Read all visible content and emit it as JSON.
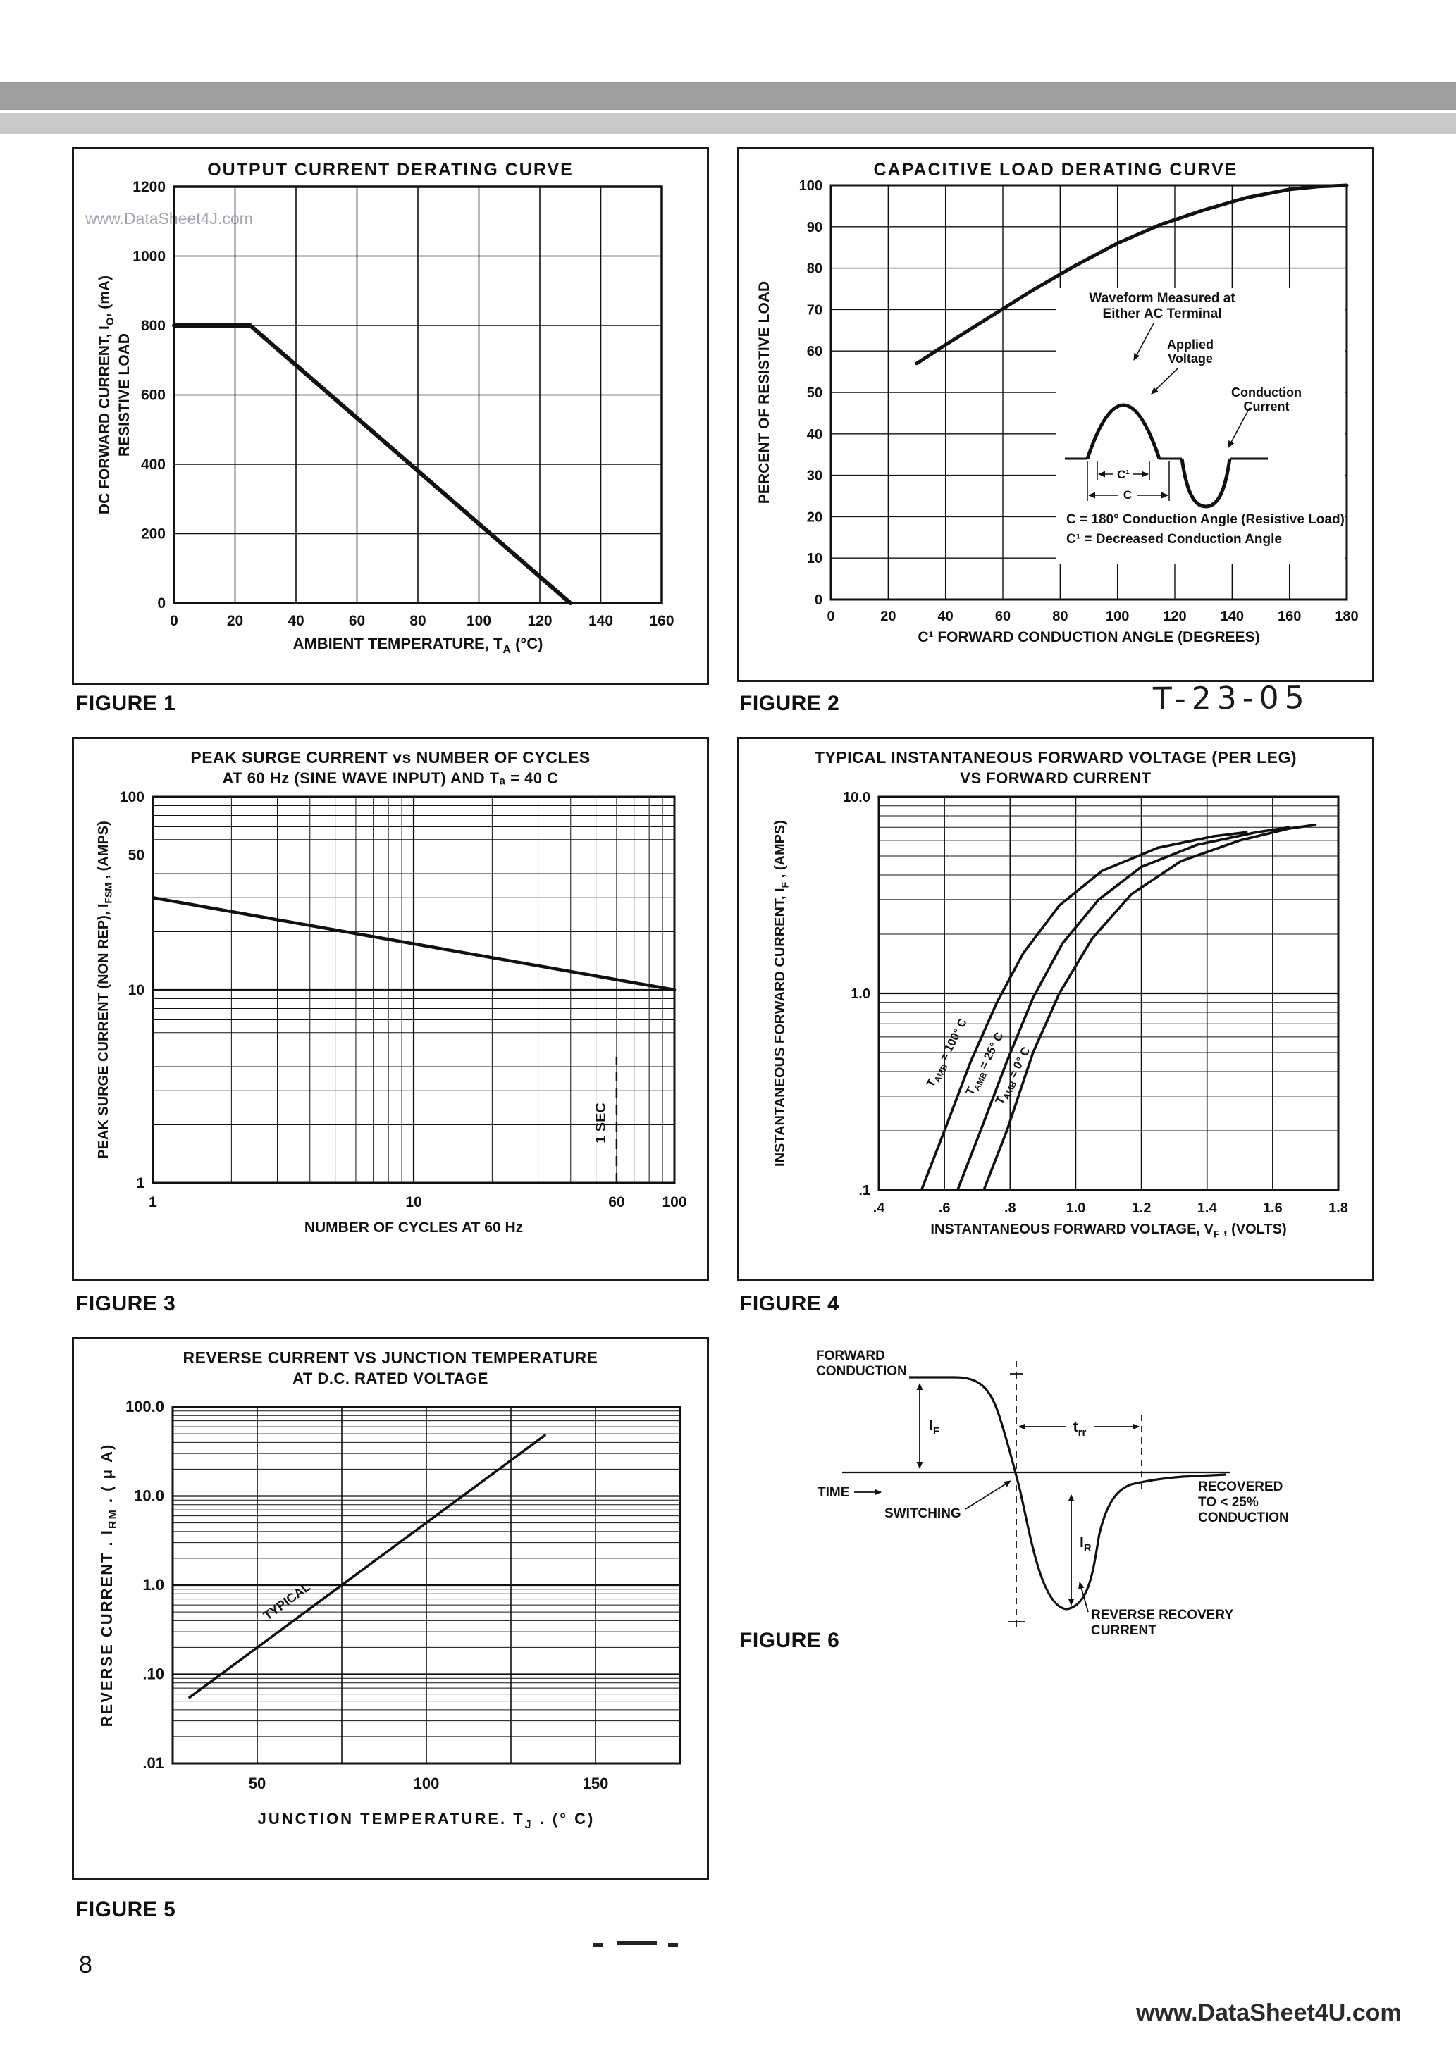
{
  "page": {
    "page_number": "8",
    "footer_watermark": "www.DataSheet4U.com",
    "figure1_watermark": "www.DataSheet4J.com",
    "stamp": "T-23-05"
  },
  "colors": {
    "header_bar_dark": "#9f9f9f",
    "header_bar_light": "#c9c9c9"
  },
  "figures": {
    "fig1": "FIGURE 1",
    "fig2": "FIGURE 2",
    "fig3": "FIGURE 3",
    "fig4": "FIGURE 4",
    "fig5": "FIGURE 5",
    "fig6": "FIGURE 6"
  },
  "chart_data": [
    {
      "id": "fig1",
      "type": "line",
      "title": "OUTPUT CURRENT DERATING CURVE",
      "xlabel": "AMBIENT TEMPERATURE, T_{A} (°C)",
      "ylabel_lines": [
        "DC FORWARD CURRENT, I_{O}, (mA)",
        "RESISTIVE LOAD"
      ],
      "xlim": [
        0,
        160
      ],
      "ylim": [
        0,
        1200
      ],
      "xticks": [
        0,
        20,
        40,
        60,
        80,
        100,
        120,
        140,
        160
      ],
      "yticks": [
        0,
        200,
        400,
        600,
        800,
        1000,
        1200
      ],
      "grid": true,
      "series": [
        {
          "name": "output-current-derating",
          "points": [
            [
              0,
              800
            ],
            [
              25,
              800
            ],
            [
              130,
              0
            ]
          ]
        }
      ]
    },
    {
      "id": "fig2",
      "type": "line",
      "title": "CAPACITIVE LOAD DERATING CURVE",
      "xlabel": "C¹ FORWARD CONDUCTION ANGLE (DEGREES)",
      "ylabel": "PERCENT OF RESISTIVE LOAD",
      "xlim": [
        0,
        180
      ],
      "ylim": [
        0,
        100
      ],
      "xticks": [
        0,
        20,
        40,
        60,
        80,
        100,
        120,
        140,
        160,
        180
      ],
      "yticks": [
        0,
        10,
        20,
        30,
        40,
        50,
        60,
        70,
        80,
        90,
        100
      ],
      "grid": true,
      "series": [
        {
          "name": "capacitive-load-derating",
          "points": [
            [
              30,
              57
            ],
            [
              40,
              61.5
            ],
            [
              55,
              68
            ],
            [
              70,
              74.5
            ],
            [
              85,
              80.5
            ],
            [
              100,
              86
            ],
            [
              115,
              90.5
            ],
            [
              130,
              94
            ],
            [
              145,
              97
            ],
            [
              160,
              99
            ],
            [
              170,
              99.7
            ],
            [
              180,
              100
            ]
          ]
        }
      ],
      "annotations": {
        "measured_lines": [
          "Waveform Measured at",
          "Either AC Terminal"
        ],
        "applied_lines": [
          "Applied",
          "Voltage"
        ],
        "conduction_lines": [
          "Conduction",
          "Current"
        ],
        "c1_label": "C¹",
        "c_label": "C",
        "notes": [
          "C  = 180° Conduction Angle (Resistive Load)",
          "C¹ = Decreased Conduction Angle"
        ]
      }
    },
    {
      "id": "fig3",
      "type": "loglog",
      "title_lines": [
        "PEAK SURGE CURRENT vs NUMBER OF CYCLES",
        "AT 60 Hz (SINE WAVE INPUT) AND Tₐ = 40 C"
      ],
      "xlabel": "NUMBER OF CYCLES AT 60 Hz",
      "ylabel": "PEAK SURGE CURRENT (NON REP), I_{FSM} , (AMPS)",
      "xlim": [
        1,
        100
      ],
      "ylim": [
        1,
        100
      ],
      "xtick_labels": [
        {
          "v": 1,
          "label": "1"
        },
        {
          "v": 10,
          "label": "10"
        },
        {
          "v": 60,
          "label": "60"
        },
        {
          "v": 100,
          "label": "100"
        }
      ],
      "ytick_labels": [
        {
          "v": 100,
          "label": "100"
        },
        {
          "v": 50,
          "label": "50"
        },
        {
          "v": 10,
          "label": "10"
        },
        {
          "v": 1,
          "label": "1"
        }
      ],
      "series": [
        {
          "name": "peak-surge-current",
          "points": [
            [
              1,
              30
            ],
            [
              100,
              10
            ]
          ]
        }
      ],
      "vline": {
        "x": 60,
        "label": "1 SEC",
        "dashed": true
      }
    },
    {
      "id": "fig4",
      "type": "semilog",
      "title_lines": [
        "TYPICAL INSTANTANEOUS FORWARD VOLTAGE (PER LEG)",
        "VS FORWARD CURRENT"
      ],
      "xlabel": "INSTANTANEOUS FORWARD VOLTAGE, V_{F} , (VOLTS)",
      "ylabel": "INSTANTANEOUS FORWARD CURRENT, I_{F} , (AMPS)",
      "xlim": [
        0.4,
        1.8
      ],
      "ylim": [
        0.1,
        10
      ],
      "xtick_labels": [
        {
          "v": 0.4,
          "label": ".4"
        },
        {
          "v": 0.6,
          "label": ".6"
        },
        {
          "v": 0.8,
          "label": ".8"
        },
        {
          "v": 1.0,
          "label": "1.0"
        },
        {
          "v": 1.2,
          "label": "1.2"
        },
        {
          "v": 1.4,
          "label": "1.4"
        },
        {
          "v": 1.6,
          "label": "1.6"
        },
        {
          "v": 1.8,
          "label": "1.8"
        }
      ],
      "ytick_labels": [
        {
          "v": 10,
          "label": "10.0"
        },
        {
          "v": 1,
          "label": "1.0"
        },
        {
          "v": 0.1,
          "label": ".1"
        }
      ],
      "series": [
        {
          "name": "tamb-100c",
          "label": "T_{AMB} = 100° C",
          "points": [
            [
              0.53,
              0.1
            ],
            [
              0.6,
              0.2
            ],
            [
              0.68,
              0.45
            ],
            [
              0.76,
              0.9
            ],
            [
              0.84,
              1.6
            ],
            [
              0.95,
              2.8
            ],
            [
              1.08,
              4.2
            ],
            [
              1.25,
              5.5
            ],
            [
              1.42,
              6.3
            ],
            [
              1.52,
              6.6
            ]
          ]
        },
        {
          "name": "tamb-25c",
          "label": "T_{AMB} = 25° C",
          "points": [
            [
              0.64,
              0.1
            ],
            [
              0.71,
              0.2
            ],
            [
              0.79,
              0.45
            ],
            [
              0.87,
              0.95
            ],
            [
              0.96,
              1.8
            ],
            [
              1.07,
              3.0
            ],
            [
              1.2,
              4.4
            ],
            [
              1.37,
              5.7
            ],
            [
              1.55,
              6.6
            ],
            [
              1.65,
              7.0
            ]
          ]
        },
        {
          "name": "tamb-0c",
          "label": "T_{AMB} = 0° C",
          "points": [
            [
              0.72,
              0.1
            ],
            [
              0.79,
              0.2
            ],
            [
              0.87,
              0.5
            ],
            [
              0.95,
              1.0
            ],
            [
              1.05,
              1.9
            ],
            [
              1.17,
              3.2
            ],
            [
              1.32,
              4.7
            ],
            [
              1.5,
              6.0
            ],
            [
              1.65,
              6.9
            ],
            [
              1.73,
              7.2
            ]
          ]
        }
      ],
      "series_label_anchors": [
        [
          0.565,
          0.33
        ],
        [
          0.685,
          0.3
        ],
        [
          0.775,
          0.27
        ]
      ],
      "label_angle": -63
    },
    {
      "id": "fig5",
      "type": "semilogy",
      "title_lines": [
        "REVERSE CURRENT VS JUNCTION TEMPERATURE",
        "AT D.C. RATED VOLTAGE"
      ],
      "xlabel": "JUNCTION TEMPERATURE. T_{J} . (° C)",
      "ylabel": "REVERSE CURRENT . I_{RM} . ( μ A)",
      "xlim": [
        25,
        175
      ],
      "ylim": [
        0.01,
        100
      ],
      "xgrid": [
        25,
        50,
        75,
        100,
        125,
        150,
        175
      ],
      "xtick_labels": [
        {
          "v": 50,
          "label": "50"
        },
        {
          "v": 100,
          "label": "100"
        },
        {
          "v": 150,
          "label": "150"
        }
      ],
      "ytick_labels": [
        {
          "v": 100,
          "label": "100.0"
        },
        {
          "v": 10,
          "label": "10.0"
        },
        {
          "v": 1,
          "label": "1.0"
        },
        {
          "v": 0.1,
          "label": ".10"
        },
        {
          "v": 0.01,
          "label": ".01"
        }
      ],
      "series": [
        {
          "name": "reverse-current-typical",
          "label": "TYPICAL",
          "points": [
            [
              30,
              0.055
            ],
            [
              135,
              48
            ]
          ]
        }
      ],
      "series_label_anchor": [
        53,
        0.4
      ],
      "label_angle": -36
    },
    {
      "id": "fig6",
      "type": "diagram",
      "labels": {
        "forward_conduction_lines": [
          "FORWARD",
          "CONDUCTION"
        ],
        "time": "TIME",
        "switching": "SWITCHING",
        "trr": "t_{rr}",
        "i_f": "I_{F}",
        "i_r": "I_{R}",
        "recovered_lines": [
          "RECOVERED",
          "TO < 25%",
          "CONDUCTION"
        ],
        "reverse_recovery_lines": [
          "REVERSE RECOVERY",
          "CURRENT"
        ]
      }
    }
  ]
}
